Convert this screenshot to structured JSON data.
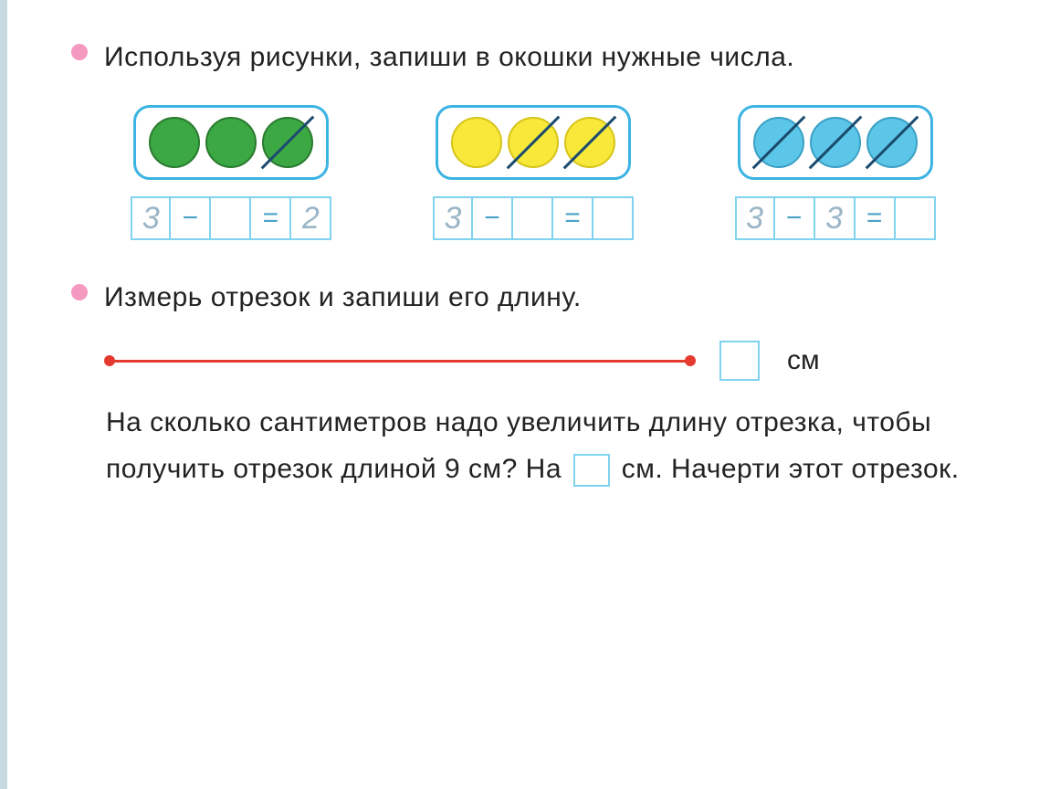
{
  "task1": {
    "instruction": "Используя рисунки, запиши в окошки нужные числа.",
    "groups": [
      {
        "circle_color": "#3ba843",
        "circle_border": "#2a7a30",
        "crossed": [
          false,
          false,
          true
        ],
        "equation": {
          "a": "3",
          "op1": "−",
          "b": "",
          "op2": "=",
          "c": "2"
        }
      },
      {
        "circle_color": "#f7e83a",
        "circle_border": "#d6c41a",
        "crossed": [
          false,
          true,
          true
        ],
        "equation": {
          "a": "3",
          "op1": "−",
          "b": "",
          "op2": "=",
          "c": ""
        }
      },
      {
        "circle_color": "#5cc6e8",
        "circle_border": "#3aa0c4",
        "crossed": [
          true,
          true,
          true
        ],
        "equation": {
          "a": "3",
          "op1": "−",
          "b": "3",
          "op2": "=",
          "c": ""
        }
      }
    ]
  },
  "task2": {
    "instruction": "Измерь отрезок и запиши его длину.",
    "segment_color": "#e53a2e",
    "unit_label": "см",
    "follow_part1": "На сколько сантиметров надо увеличить длину отрезка, чтобы получить отрезок длиной 9 см? На",
    "follow_part2": "см. Начерти этот отрезок."
  },
  "colors": {
    "bullet": "#f49ac1",
    "box_border": "#3bb3e3",
    "cell_border": "#7fd3ee"
  }
}
